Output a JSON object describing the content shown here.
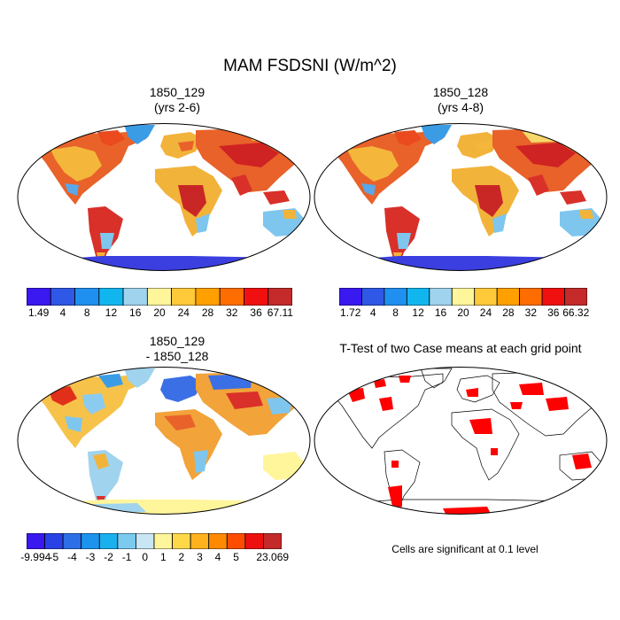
{
  "figure": {
    "title": "MAM FSDSNI (W/m^2)",
    "panels": [
      {
        "title_line1": "1850_129",
        "title_line2": "(yrs 2-6)"
      },
      {
        "title_line1": "1850_128",
        "title_line2": "(yrs 4-8)"
      },
      {
        "title_line1": "1850_129",
        "title_line2": "- 1850_128"
      },
      {
        "title_line1": "T-Test of two Case means at each grid point",
        "title_line2": ""
      }
    ],
    "footnote": "Cells are significant at 0.1 level"
  },
  "colorbars": {
    "top_left": {
      "labels": [
        "1.49",
        "4",
        "8",
        "12",
        "16",
        "20",
        "24",
        "28",
        "32",
        "36",
        "67.11"
      ],
      "colors": [
        "#3a18f0",
        "#2f58e6",
        "#1f90f0",
        "#12b6ef",
        "#9fd3ee",
        "#fff59b",
        "#ffc93a",
        "#ffa000",
        "#ff6d00",
        "#f01010",
        "#c42a2a"
      ]
    },
    "top_right": {
      "labels": [
        "1.72",
        "4",
        "8",
        "12",
        "16",
        "20",
        "24",
        "28",
        "32",
        "36",
        "66.32"
      ],
      "colors": [
        "#3a18f0",
        "#2f58e6",
        "#1f90f0",
        "#12b6ef",
        "#9fd3ee",
        "#fff59b",
        "#ffc93a",
        "#ffa000",
        "#ff6d00",
        "#f01010",
        "#c42a2a"
      ]
    },
    "bottom_left": {
      "labels": [
        "-9.994",
        "-5",
        "-4",
        "-3",
        "-2",
        "-1",
        "0",
        "1",
        "2",
        "3",
        "4",
        "5",
        "23.069"
      ],
      "colors": [
        "#3a18f0",
        "#2842e6",
        "#2c6fe6",
        "#1c94ee",
        "#1ab0ee",
        "#7ccbee",
        "#c8e6f3",
        "#fff59b",
        "#ffd84a",
        "#ffb21e",
        "#ff8a00",
        "#ff4d00",
        "#ee1010",
        "#c42a2a"
      ]
    }
  },
  "colors": {
    "warm": "#f2b33a",
    "hot": "#e53e1a",
    "deep": "#cf2222",
    "cool": "#7fc6ee",
    "antarctic": "#3b3fe0",
    "significant": "#ff0000"
  }
}
